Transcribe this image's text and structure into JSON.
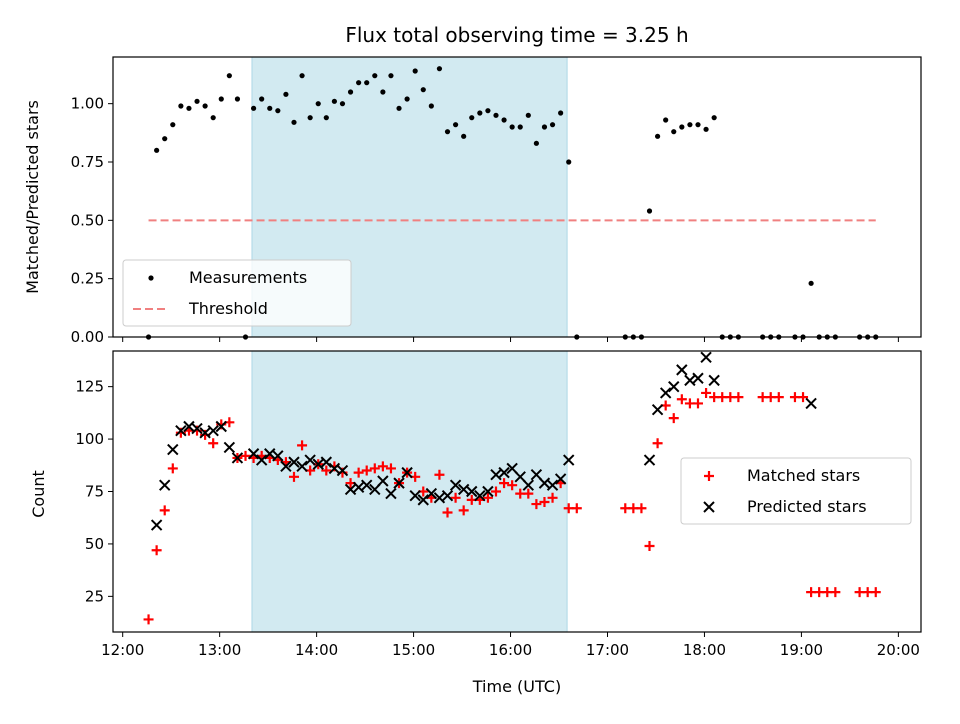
{
  "chart_data": [
    {
      "type": "scatter",
      "title": "Flux total observing time = 3.25 h",
      "xlabel": "",
      "ylabel": "Matched/Predicted stars",
      "xlim": [
        "12:00",
        "20:00"
      ],
      "ylim": [
        0,
        1.2
      ],
      "yticks": [
        "0.00",
        "0.25",
        "0.50",
        "0.75",
        "1.00"
      ],
      "shaded_region": {
        "start": "13:20",
        "end": "16:35",
        "color": "#add8e6"
      },
      "legend": {
        "placement": "lower-left",
        "entries": [
          "Measurements",
          "Threshold"
        ]
      },
      "series": [
        {
          "name": "Measurements",
          "marker": "dot",
          "color": "#000000",
          "points": [
            [
              "12:16",
              0.0
            ],
            [
              "12:21",
              0.8
            ],
            [
              "12:26",
              0.85
            ],
            [
              "12:31",
              0.91
            ],
            [
              "12:36",
              0.99
            ],
            [
              "12:41",
              0.98
            ],
            [
              "12:46",
              1.01
            ],
            [
              "12:51",
              0.99
            ],
            [
              "12:56",
              0.94
            ],
            [
              "13:01",
              1.02
            ],
            [
              "13:06",
              1.12
            ],
            [
              "13:11",
              1.02
            ],
            [
              "13:16",
              0.0
            ],
            [
              "13:21",
              0.98
            ],
            [
              "13:26",
              1.02
            ],
            [
              "13:31",
              0.98
            ],
            [
              "13:36",
              0.97
            ],
            [
              "13:41",
              1.04
            ],
            [
              "13:46",
              0.92
            ],
            [
              "13:51",
              1.12
            ],
            [
              "13:56",
              0.94
            ],
            [
              "14:01",
              1.0
            ],
            [
              "14:06",
              0.94
            ],
            [
              "14:11",
              1.01
            ],
            [
              "14:16",
              1.0
            ],
            [
              "14:21",
              1.05
            ],
            [
              "14:26",
              1.09
            ],
            [
              "14:31",
              1.09
            ],
            [
              "14:36",
              1.12
            ],
            [
              "14:41",
              1.05
            ],
            [
              "14:46",
              1.12
            ],
            [
              "14:51",
              0.98
            ],
            [
              "14:56",
              1.02
            ],
            [
              "15:01",
              1.14
            ],
            [
              "15:06",
              1.06
            ],
            [
              "15:11",
              0.99
            ],
            [
              "15:16",
              1.15
            ],
            [
              "15:21",
              0.88
            ],
            [
              "15:26",
              0.91
            ],
            [
              "15:31",
              0.86
            ],
            [
              "15:36",
              0.94
            ],
            [
              "15:41",
              0.96
            ],
            [
              "15:46",
              0.97
            ],
            [
              "15:51",
              0.95
            ],
            [
              "15:56",
              0.93
            ],
            [
              "16:01",
              0.9
            ],
            [
              "16:06",
              0.9
            ],
            [
              "16:11",
              0.95
            ],
            [
              "16:16",
              0.83
            ],
            [
              "16:21",
              0.9
            ],
            [
              "16:26",
              0.91
            ],
            [
              "16:31",
              0.96
            ],
            [
              "16:36",
              0.75
            ],
            [
              "16:41",
              0.0
            ],
            [
              "17:11",
              0.0
            ],
            [
              "17:16",
              0.0
            ],
            [
              "17:21",
              0.0
            ],
            [
              "17:26",
              0.54
            ],
            [
              "17:31",
              0.86
            ],
            [
              "17:36",
              0.93
            ],
            [
              "17:41",
              0.88
            ],
            [
              "17:46",
              0.9
            ],
            [
              "17:51",
              0.91
            ],
            [
              "17:56",
              0.91
            ],
            [
              "18:01",
              0.89
            ],
            [
              "18:06",
              0.94
            ],
            [
              "18:11",
              0.0
            ],
            [
              "18:16",
              0.0
            ],
            [
              "18:21",
              0.0
            ],
            [
              "18:36",
              0.0
            ],
            [
              "18:41",
              0.0
            ],
            [
              "18:46",
              0.0
            ],
            [
              "18:56",
              0.0
            ],
            [
              "19:01",
              0.0
            ],
            [
              "19:06",
              0.23
            ],
            [
              "19:11",
              0.0
            ],
            [
              "19:16",
              0.0
            ],
            [
              "19:21",
              0.0
            ],
            [
              "19:36",
              0.0
            ],
            [
              "19:41",
              0.0
            ],
            [
              "19:46",
              0.0
            ]
          ]
        },
        {
          "name": "Threshold",
          "marker": "dashed-line",
          "color": "#f08080",
          "points": [
            [
              "12:16",
              0.5
            ],
            [
              "19:46",
              0.5
            ]
          ]
        }
      ]
    },
    {
      "type": "scatter",
      "title": "",
      "xlabel": "Time (UTC)",
      "ylabel": "Count",
      "xlim": [
        "12:00",
        "20:00"
      ],
      "xticks": [
        "12:00",
        "13:00",
        "14:00",
        "15:00",
        "16:00",
        "17:00",
        "18:00",
        "19:00",
        "20:00"
      ],
      "ylim": [
        8,
        142
      ],
      "yticks": [
        "25",
        "50",
        "75",
        "100",
        "125"
      ],
      "shaded_region": {
        "start": "13:20",
        "end": "16:35",
        "color": "#add8e6"
      },
      "legend": {
        "placement": "right",
        "entries": [
          "Matched stars",
          "Predicted stars"
        ]
      },
      "series": [
        {
          "name": "Matched stars",
          "marker": "plus",
          "color": "#ff0000",
          "points": [
            [
              "12:16",
              14
            ],
            [
              "12:21",
              47
            ],
            [
              "12:26",
              66
            ],
            [
              "12:31",
              86
            ],
            [
              "12:36",
              103
            ],
            [
              "12:41",
              104
            ],
            [
              "12:46",
              104
            ],
            [
              "12:51",
              102
            ],
            [
              "12:56",
              98
            ],
            [
              "13:01",
              107
            ],
            [
              "13:06",
              108
            ],
            [
              "13:11",
              91
            ],
            [
              "13:16",
              92
            ],
            [
              "13:21",
              91
            ],
            [
              "13:26",
              92
            ],
            [
              "13:31",
              91
            ],
            [
              "13:36",
              90
            ],
            [
              "13:41",
              89
            ],
            [
              "13:46",
              82
            ],
            [
              "13:51",
              97
            ],
            [
              "13:56",
              85
            ],
            [
              "14:01",
              88
            ],
            [
              "14:06",
              85
            ],
            [
              "14:11",
              87
            ],
            [
              "14:16",
              84
            ],
            [
              "14:21",
              79
            ],
            [
              "14:26",
              84
            ],
            [
              "14:31",
              85
            ],
            [
              "14:36",
              86
            ],
            [
              "14:41",
              87
            ],
            [
              "14:46",
              86
            ],
            [
              "14:51",
              79
            ],
            [
              "14:56",
              84
            ],
            [
              "15:01",
              82
            ],
            [
              "15:06",
              75
            ],
            [
              "15:11",
              72
            ],
            [
              "15:16",
              83
            ],
            [
              "15:21",
              65
            ],
            [
              "15:26",
              72
            ],
            [
              "15:31",
              66
            ],
            [
              "15:36",
              71
            ],
            [
              "15:41",
              71
            ],
            [
              "15:46",
              72
            ],
            [
              "15:51",
              75
            ],
            [
              "15:56",
              79
            ],
            [
              "16:01",
              78
            ],
            [
              "16:06",
              74
            ],
            [
              "16:11",
              74
            ],
            [
              "16:16",
              69
            ],
            [
              "16:21",
              70
            ],
            [
              "16:26",
              72
            ],
            [
              "16:31",
              79
            ],
            [
              "16:36",
              67
            ],
            [
              "16:41",
              67
            ],
            [
              "17:11",
              67
            ],
            [
              "17:16",
              67
            ],
            [
              "17:21",
              67
            ],
            [
              "17:26",
              49
            ],
            [
              "17:31",
              98
            ],
            [
              "17:36",
              116
            ],
            [
              "17:41",
              110
            ],
            [
              "17:46",
              119
            ],
            [
              "17:51",
              117
            ],
            [
              "17:56",
              117
            ],
            [
              "18:01",
              122
            ],
            [
              "18:06",
              120
            ],
            [
              "18:11",
              120
            ],
            [
              "18:16",
              120
            ],
            [
              "18:21",
              120
            ],
            [
              "18:36",
              120
            ],
            [
              "18:41",
              120
            ],
            [
              "18:46",
              120
            ],
            [
              "18:56",
              120
            ],
            [
              "19:01",
              120
            ],
            [
              "19:06",
              27
            ],
            [
              "19:11",
              27
            ],
            [
              "19:16",
              27
            ],
            [
              "19:21",
              27
            ],
            [
              "19:36",
              27
            ],
            [
              "19:41",
              27
            ],
            [
              "19:46",
              27
            ]
          ]
        },
        {
          "name": "Predicted stars",
          "marker": "x",
          "color": "#000000",
          "points": [
            [
              "12:21",
              59
            ],
            [
              "12:26",
              78
            ],
            [
              "12:31",
              95
            ],
            [
              "12:36",
              104
            ],
            [
              "12:41",
              106
            ],
            [
              "12:46",
              105
            ],
            [
              "12:51",
              103
            ],
            [
              "12:56",
              104
            ],
            [
              "13:01",
              106
            ],
            [
              "13:06",
              96
            ],
            [
              "13:11",
              91
            ],
            [
              "13:21",
              93
            ],
            [
              "13:26",
              90
            ],
            [
              "13:31",
              93
            ],
            [
              "13:36",
              92
            ],
            [
              "13:41",
              87
            ],
            [
              "13:46",
              89
            ],
            [
              "13:51",
              87
            ],
            [
              "13:56",
              90
            ],
            [
              "14:01",
              88
            ],
            [
              "14:06",
              89
            ],
            [
              "14:11",
              86
            ],
            [
              "14:16",
              85
            ],
            [
              "14:21",
              76
            ],
            [
              "14:26",
              77
            ],
            [
              "14:31",
              78
            ],
            [
              "14:36",
              76
            ],
            [
              "14:41",
              80
            ],
            [
              "14:46",
              74
            ],
            [
              "14:51",
              79
            ],
            [
              "14:56",
              84
            ],
            [
              "15:01",
              73
            ],
            [
              "15:06",
              71
            ],
            [
              "15:11",
              74
            ],
            [
              "15:16",
              72
            ],
            [
              "15:21",
              73
            ],
            [
              "15:26",
              78
            ],
            [
              "15:31",
              76
            ],
            [
              "15:36",
              75
            ],
            [
              "15:41",
              73
            ],
            [
              "15:46",
              75
            ],
            [
              "15:51",
              83
            ],
            [
              "15:56",
              84
            ],
            [
              "16:01",
              86
            ],
            [
              "16:06",
              82
            ],
            [
              "16:11",
              78
            ],
            [
              "16:16",
              83
            ],
            [
              "16:21",
              79
            ],
            [
              "16:26",
              78
            ],
            [
              "16:31",
              81
            ],
            [
              "16:36",
              90
            ],
            [
              "17:26",
              90
            ],
            [
              "17:31",
              114
            ],
            [
              "17:36",
              122
            ],
            [
              "17:41",
              125
            ],
            [
              "17:46",
              133
            ],
            [
              "17:51",
              128
            ],
            [
              "17:56",
              129
            ],
            [
              "18:01",
              139
            ],
            [
              "18:06",
              128
            ],
            [
              "19:06",
              117
            ]
          ]
        }
      ]
    }
  ]
}
